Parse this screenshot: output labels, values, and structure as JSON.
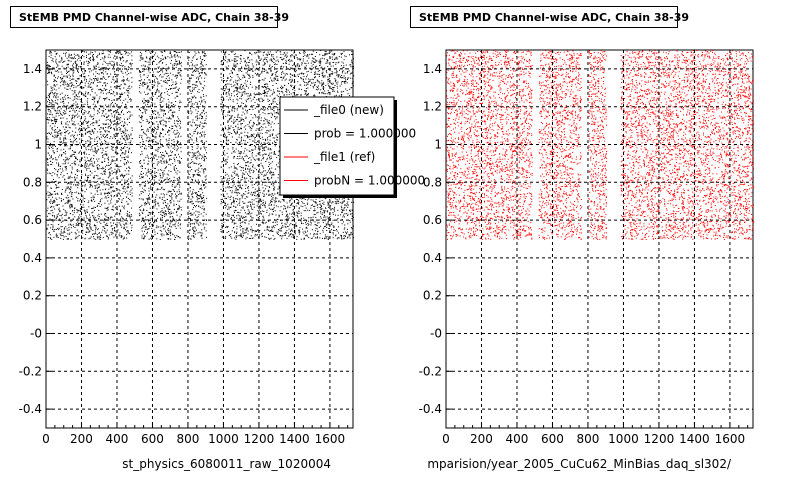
{
  "chart_data": [
    {
      "type": "scatter",
      "title": "StEMB PMD Channel-wise ADC, Chain 38-39",
      "xlabel": "st_physics_6080011_raw_1020004",
      "ylabel": "",
      "xlim": [
        0,
        1730
      ],
      "ylim": [
        -0.5,
        1.5
      ],
      "xticks": [
        0,
        200,
        400,
        600,
        800,
        1000,
        1200,
        1400,
        1600
      ],
      "yticks": [
        -0.4,
        -0.2,
        0,
        0.2,
        0.4,
        0.6,
        0.8,
        1,
        1.2,
        1.4
      ],
      "ytick_labels": [
        "-0.4",
        "-0.2",
        "-0",
        "0.2",
        "0.4",
        "0.6",
        "0.8",
        "1",
        "1.2",
        "1.4"
      ],
      "grid": true,
      "series": [
        {
          "name": "_file0 (new)",
          "color": "#000000",
          "y_range": [
            0.5,
            1.5
          ],
          "x_range": [
            0,
            1730
          ],
          "gaps": [
            [
              480,
              520
            ],
            [
              760,
              800
            ],
            [
              900,
              980
            ]
          ]
        }
      ],
      "legend": {
        "position": "top-right",
        "entries": [
          {
            "label": "_file0 (new)",
            "color": "#000000"
          },
          {
            "label": "prob = 1.000000",
            "color": "#000000"
          },
          {
            "label": "_file1 (ref)",
            "color": "#ff0000"
          },
          {
            "label": "probN = 1.000000",
            "color": "#ff0000"
          }
        ]
      }
    },
    {
      "type": "scatter",
      "title": "StEMB PMD Channel-wise ADC, Chain 38-39",
      "xlabel": "mparision/year_2005_CuCu62_MinBias_daq_sl302/",
      "ylabel": "",
      "xlim": [
        0,
        1730
      ],
      "ylim": [
        -0.5,
        1.5
      ],
      "xticks": [
        0,
        200,
        400,
        600,
        800,
        1000,
        1200,
        1400,
        1600
      ],
      "yticks": [
        -0.4,
        -0.2,
        0,
        0.2,
        0.4,
        0.6,
        0.8,
        1,
        1.2,
        1.4
      ],
      "ytick_labels": [
        "-0.4",
        "-0.2",
        "-0",
        "0.2",
        "0.4",
        "0.6",
        "0.8",
        "1",
        "1.2",
        "1.4"
      ],
      "grid": true,
      "series": [
        {
          "name": "_file1 (ref)",
          "color": "#ff0000",
          "y_range": [
            0.5,
            1.5
          ],
          "x_range": [
            0,
            1730
          ],
          "gaps": [
            [
              480,
              520
            ],
            [
              760,
              800
            ],
            [
              900,
              980
            ]
          ]
        }
      ]
    }
  ]
}
